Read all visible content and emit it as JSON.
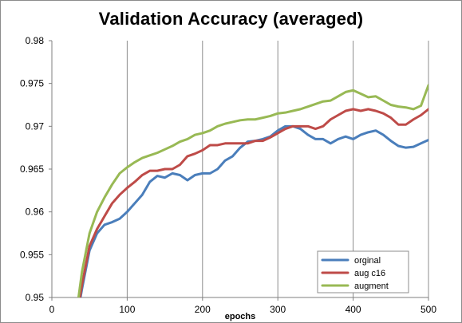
{
  "chart_data": {
    "type": "line",
    "title": "Validation Accuracy (averaged)",
    "xlabel": "epochs",
    "ylabel": "",
    "xlim": [
      0,
      500
    ],
    "ylim": [
      0.95,
      0.98
    ],
    "x_ticks": [
      0,
      100,
      200,
      300,
      400,
      500
    ],
    "y_ticks": [
      0.95,
      0.955,
      0.96,
      0.965,
      0.97,
      0.975,
      0.98
    ],
    "x_tick_labels": [
      "0",
      "100",
      "200",
      "300",
      "400",
      "500"
    ],
    "y_tick_labels": [
      "0.95",
      "0.955",
      "0.96",
      "0.965",
      "0.97",
      "0.975",
      "0.98"
    ],
    "grid": "vertical gridlines only",
    "legend_position": "bottom-right",
    "series": [
      {
        "name": "orginal",
        "color": "#4a7ebb",
        "points": [
          [
            30,
            0.946
          ],
          [
            40,
            0.951
          ],
          [
            50,
            0.9555
          ],
          [
            60,
            0.9575
          ],
          [
            70,
            0.9585
          ],
          [
            80,
            0.9588
          ],
          [
            90,
            0.9592
          ],
          [
            100,
            0.96
          ],
          [
            110,
            0.961
          ],
          [
            120,
            0.962
          ],
          [
            130,
            0.9635
          ],
          [
            140,
            0.9642
          ],
          [
            150,
            0.964
          ],
          [
            160,
            0.9645
          ],
          [
            170,
            0.9643
          ],
          [
            180,
            0.9637
          ],
          [
            190,
            0.9643
          ],
          [
            200,
            0.9645
          ],
          [
            210,
            0.9645
          ],
          [
            220,
            0.965
          ],
          [
            230,
            0.966
          ],
          [
            240,
            0.9665
          ],
          [
            250,
            0.9675
          ],
          [
            260,
            0.9682
          ],
          [
            270,
            0.9683
          ],
          [
            280,
            0.9685
          ],
          [
            290,
            0.9688
          ],
          [
            300,
            0.9695
          ],
          [
            310,
            0.97
          ],
          [
            320,
            0.97
          ],
          [
            330,
            0.9697
          ],
          [
            340,
            0.969
          ],
          [
            350,
            0.9685
          ],
          [
            360,
            0.9685
          ],
          [
            370,
            0.968
          ],
          [
            380,
            0.9685
          ],
          [
            390,
            0.9688
          ],
          [
            400,
            0.9685
          ],
          [
            410,
            0.969
          ],
          [
            420,
            0.9693
          ],
          [
            430,
            0.9695
          ],
          [
            440,
            0.969
          ],
          [
            450,
            0.9683
          ],
          [
            460,
            0.9677
          ],
          [
            470,
            0.9675
          ],
          [
            480,
            0.9676
          ],
          [
            490,
            0.968
          ],
          [
            500,
            0.9684
          ]
        ]
      },
      {
        "name": "aug c16",
        "color": "#be4b48",
        "points": [
          [
            30,
            0.946
          ],
          [
            40,
            0.9515
          ],
          [
            50,
            0.956
          ],
          [
            60,
            0.958
          ],
          [
            70,
            0.9595
          ],
          [
            80,
            0.961
          ],
          [
            90,
            0.962
          ],
          [
            100,
            0.9628
          ],
          [
            110,
            0.9635
          ],
          [
            120,
            0.9643
          ],
          [
            130,
            0.9648
          ],
          [
            140,
            0.9648
          ],
          [
            150,
            0.965
          ],
          [
            160,
            0.965
          ],
          [
            170,
            0.9655
          ],
          [
            180,
            0.9665
          ],
          [
            190,
            0.9668
          ],
          [
            200,
            0.9672
          ],
          [
            210,
            0.9678
          ],
          [
            220,
            0.9678
          ],
          [
            230,
            0.968
          ],
          [
            240,
            0.968
          ],
          [
            250,
            0.968
          ],
          [
            260,
            0.968
          ],
          [
            270,
            0.9683
          ],
          [
            280,
            0.9683
          ],
          [
            290,
            0.9687
          ],
          [
            300,
            0.9692
          ],
          [
            310,
            0.9697
          ],
          [
            320,
            0.97
          ],
          [
            330,
            0.97
          ],
          [
            340,
            0.97
          ],
          [
            350,
            0.9697
          ],
          [
            360,
            0.97
          ],
          [
            370,
            0.9708
          ],
          [
            380,
            0.9713
          ],
          [
            390,
            0.9718
          ],
          [
            400,
            0.972
          ],
          [
            410,
            0.9718
          ],
          [
            420,
            0.972
          ],
          [
            430,
            0.9718
          ],
          [
            440,
            0.9715
          ],
          [
            450,
            0.971
          ],
          [
            460,
            0.9702
          ],
          [
            470,
            0.9702
          ],
          [
            480,
            0.9708
          ],
          [
            490,
            0.9713
          ],
          [
            500,
            0.972
          ]
        ]
      },
      {
        "name": "augment",
        "color": "#98b954",
        "points": [
          [
            30,
            0.9465
          ],
          [
            40,
            0.953
          ],
          [
            50,
            0.9575
          ],
          [
            60,
            0.96
          ],
          [
            70,
            0.9617
          ],
          [
            80,
            0.9632
          ],
          [
            90,
            0.9645
          ],
          [
            100,
            0.9652
          ],
          [
            110,
            0.9658
          ],
          [
            120,
            0.9663
          ],
          [
            130,
            0.9666
          ],
          [
            140,
            0.9669
          ],
          [
            150,
            0.9673
          ],
          [
            160,
            0.9677
          ],
          [
            170,
            0.9682
          ],
          [
            180,
            0.9685
          ],
          [
            190,
            0.969
          ],
          [
            200,
            0.9692
          ],
          [
            210,
            0.9695
          ],
          [
            220,
            0.97
          ],
          [
            230,
            0.9703
          ],
          [
            240,
            0.9705
          ],
          [
            250,
            0.9707
          ],
          [
            260,
            0.9708
          ],
          [
            270,
            0.9708
          ],
          [
            280,
            0.971
          ],
          [
            290,
            0.9712
          ],
          [
            300,
            0.9715
          ],
          [
            310,
            0.9716
          ],
          [
            320,
            0.9718
          ],
          [
            330,
            0.972
          ],
          [
            340,
            0.9723
          ],
          [
            350,
            0.9726
          ],
          [
            360,
            0.9729
          ],
          [
            370,
            0.973
          ],
          [
            380,
            0.9735
          ],
          [
            390,
            0.974
          ],
          [
            400,
            0.9742
          ],
          [
            410,
            0.9738
          ],
          [
            420,
            0.9734
          ],
          [
            430,
            0.9735
          ],
          [
            440,
            0.973
          ],
          [
            450,
            0.9725
          ],
          [
            460,
            0.9723
          ],
          [
            470,
            0.9722
          ],
          [
            480,
            0.972
          ],
          [
            490,
            0.9724
          ],
          [
            500,
            0.9748
          ]
        ]
      }
    ]
  }
}
